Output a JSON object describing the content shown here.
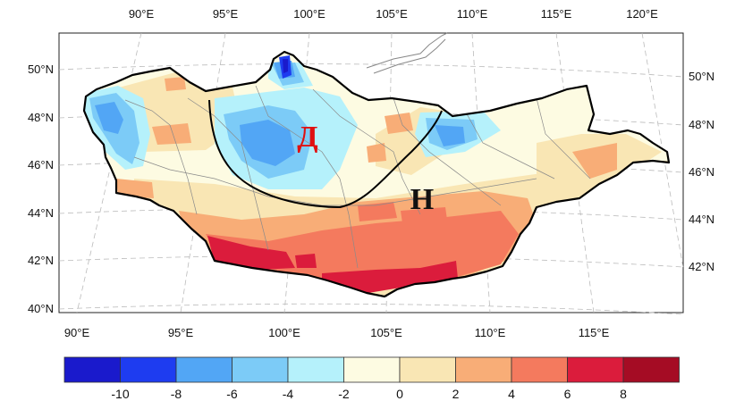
{
  "map": {
    "projection": "Lambert conformal conic",
    "region_outline": "Mongolia",
    "top_axis_labels": [
      "90°E",
      "95°E",
      "100°E",
      "105°E",
      "110°E",
      "115°E",
      "120°E"
    ],
    "bottom_axis_labels": [
      "90°E",
      "95°E",
      "100°E",
      "105°E",
      "110°E",
      "115°E"
    ],
    "left_axis_labels": [
      "50°N",
      "48°N",
      "46°N",
      "44°N",
      "42°N",
      "40°N"
    ],
    "right_axis_labels": [
      "50°N",
      "48°N",
      "46°N",
      "44°N",
      "42°N"
    ],
    "zone_labels": {
      "d": "Д",
      "n": "Н"
    },
    "colors": {
      "outline": "#000000",
      "border": "#888888",
      "grid": "#bbbbbb"
    }
  },
  "colorbar": {
    "labels": [
      "-10",
      "-8",
      "-6",
      "-4",
      "-2",
      "0",
      "2",
      "4",
      "6",
      "8"
    ],
    "colors": [
      "#1a1acc",
      "#1e3cf0",
      "#52a6f5",
      "#7ccbf7",
      "#b5f1fb",
      "#fdfbe2",
      "#f9e6b4",
      "#f8ad77",
      "#f47a5e",
      "#db1c3c",
      "#a50c24"
    ]
  }
}
